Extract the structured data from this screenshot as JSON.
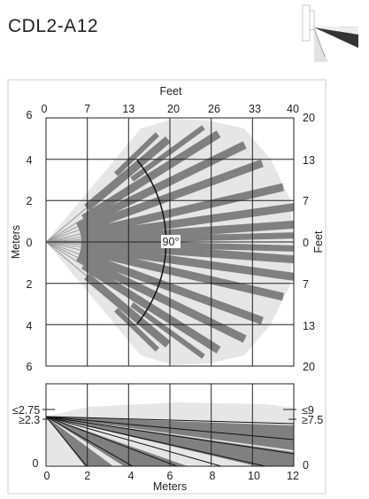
{
  "title": "CDL2-A12",
  "thumbnail": {
    "icon": "sensor-mounting-icon"
  },
  "colors": {
    "beam": "#808080",
    "coverage": "#e6e6e6",
    "grid": "#222222",
    "frame": "#d0d0d0"
  },
  "top_view": {
    "top_axis_label": "Feet",
    "left_axis_label": "Meters",
    "right_axis_label": "Feet",
    "feet_ticks_top": [
      "0",
      "7",
      "13",
      "20",
      "26",
      "33",
      "40"
    ],
    "meter_ticks_left": [
      "6",
      "4",
      "2",
      "0",
      "2",
      "4",
      "6"
    ],
    "feet_ticks_right": [
      "20",
      "13",
      "7",
      "0",
      "7",
      "13",
      "20"
    ],
    "angle_label": "90°"
  },
  "side_view": {
    "bottom_axis_label": "Meters",
    "meter_ticks_bottom": [
      "0",
      "2",
      "4",
      "6",
      "8",
      "10",
      "12"
    ],
    "left_height_labels": [
      "≤2.75",
      "≥2.3",
      "0"
    ],
    "right_height_labels": [
      "≤9",
      "≥7.5",
      "0"
    ]
  }
}
